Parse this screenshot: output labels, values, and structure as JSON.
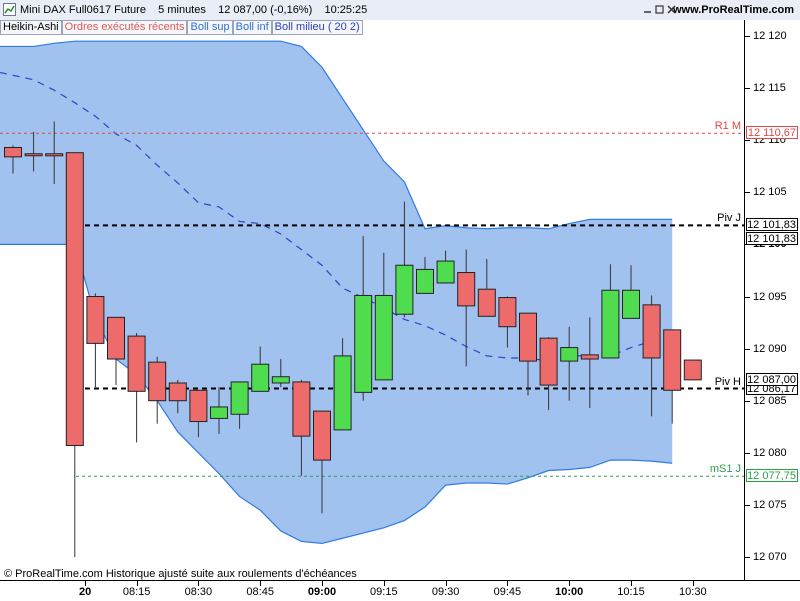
{
  "titlebar": {
    "title": "Mini DAX Full0617 Future    5 minutes    12 087,00 (-0,16%)    10:25:25",
    "brand": "www.ProRealTime.com"
  },
  "legend": [
    {
      "label": "Heikin-Ashi",
      "color": "#000000"
    },
    {
      "label": "Ordres exécutés récents",
      "color": "#e05a5a"
    },
    {
      "label": "Boll sup",
      "color": "#2f6fd6"
    },
    {
      "label": "Boll inf",
      "color": "#2f6fd6"
    },
    {
      "label": "Boll milieu ( 20 2)",
      "color": "#2f3fbf"
    }
  ],
  "footer": "© ProRealTime.com  Historique ajusté suite aux roulements d'échéances",
  "colors": {
    "up": "#4fdc4f",
    "down": "#ee6b6b",
    "band_fill": "#8cb4ec",
    "band_line": "#2f7be0",
    "mid_line": "#2a45c8",
    "red_level": "#e04848",
    "green_level": "#2aa048"
  },
  "levels": [
    {
      "name": "R1 M",
      "value": 12110.67,
      "label": "12 110,67",
      "style": "red"
    },
    {
      "name": "Piv J",
      "value": 12101.83,
      "label": "12 101,83",
      "style": "black"
    },
    {
      "name": "Piv H",
      "value": 12086.17,
      "label": "12 086,17",
      "style": "black"
    },
    {
      "name": "mS1 J",
      "value": 12077.75,
      "label": "12 077,75",
      "style": "green"
    }
  ],
  "extra_price_box": {
    "value": 12101.83,
    "label": "12 101,83"
  },
  "last_price": {
    "value": 12087.0,
    "label": "12 087,00"
  },
  "chart_data": {
    "type": "candlestick",
    "yaxis": {
      "min": 12069,
      "max": 12121,
      "ticks": [
        {
          "value": 12120,
          "label": "12 120",
          "bold": false
        },
        {
          "value": 12115,
          "label": "12 115",
          "bold": false
        },
        {
          "value": 12110,
          "label": "12 110",
          "bold": false
        },
        {
          "value": 12105,
          "label": "12 105",
          "bold": false
        },
        {
          "value": 12100,
          "label": "12 100",
          "bold": true
        },
        {
          "value": 12095,
          "label": "12 095",
          "bold": false
        },
        {
          "value": 12090,
          "label": "12 090",
          "bold": false
        },
        {
          "value": 12085,
          "label": "12 085",
          "bold": false
        },
        {
          "value": 12080,
          "label": "12 080",
          "bold": false
        },
        {
          "value": 12075,
          "label": "12 075",
          "bold": false
        },
        {
          "value": 12070,
          "label": "12 070",
          "bold": false
        }
      ]
    },
    "xaxis": {
      "ticks": [
        {
          "index": 3.5,
          "label": "20",
          "bold": true
        },
        {
          "index": 6,
          "label": "08:15",
          "bold": false
        },
        {
          "index": 9,
          "label": "08:30",
          "bold": false
        },
        {
          "index": 12,
          "label": "08:45",
          "bold": false
        },
        {
          "index": 15,
          "label": "09:00",
          "bold": true
        },
        {
          "index": 18,
          "label": "09:15",
          "bold": false
        },
        {
          "index": 21,
          "label": "09:30",
          "bold": false
        },
        {
          "index": 24,
          "label": "09:45",
          "bold": false
        },
        {
          "index": 27,
          "label": "10:00",
          "bold": true
        },
        {
          "index": 30,
          "label": "10:15",
          "bold": false
        },
        {
          "index": 33,
          "label": "10:30",
          "bold": false
        }
      ]
    },
    "candles": [
      {
        "o": 12109.3,
        "c": 12108.4,
        "h": 12109.5,
        "l": 12106.8
      },
      {
        "o": 12108.7,
        "c": 12108.6,
        "h": 12110.8,
        "l": 12107.0
      },
      {
        "o": 12108.7,
        "c": 12108.5,
        "h": 12111.8,
        "l": 12105.8
      },
      {
        "o": 12108.8,
        "c": 12080.7,
        "h": 12108.8,
        "l": 12070.0
      },
      {
        "o": 12095.0,
        "c": 12090.5,
        "h": 12095.3,
        "l": 12086.3
      },
      {
        "o": 12093.0,
        "c": 12089.0,
        "h": 12093.0,
        "l": 12086.5
      },
      {
        "o": 12091.2,
        "c": 12085.9,
        "h": 12091.5,
        "l": 12081.0
      },
      {
        "o": 12088.7,
        "c": 12085.0,
        "h": 12089.2,
        "l": 12082.8
      },
      {
        "o": 12086.7,
        "c": 12085.0,
        "h": 12087.0,
        "l": 12083.8
      },
      {
        "o": 12086.0,
        "c": 12083.0,
        "h": 12086.0,
        "l": 12081.5
      },
      {
        "o": 12083.3,
        "c": 12084.4,
        "h": 12086.3,
        "l": 12081.8
      },
      {
        "o": 12083.7,
        "c": 12086.8,
        "h": 12086.8,
        "l": 12082.3
      },
      {
        "o": 12085.9,
        "c": 12088.5,
        "h": 12090.2,
        "l": 12085.9
      },
      {
        "o": 12086.7,
        "c": 12087.3,
        "h": 12089.0,
        "l": 12086.3
      },
      {
        "o": 12086.8,
        "c": 12081.6,
        "h": 12087.0,
        "l": 12077.8
      },
      {
        "o": 12084.0,
        "c": 12079.3,
        "h": 12084.0,
        "l": 12074.2
      },
      {
        "o": 12082.2,
        "c": 12089.3,
        "h": 12091.0,
        "l": 12082.2
      },
      {
        "o": 12085.8,
        "c": 12095.1,
        "h": 12100.8,
        "l": 12085.0
      },
      {
        "o": 12087.0,
        "c": 12095.1,
        "h": 12099.2,
        "l": 12087.0
      },
      {
        "o": 12093.3,
        "c": 12098.0,
        "h": 12104.1,
        "l": 12093.0
      },
      {
        "o": 12095.3,
        "c": 12097.6,
        "h": 12098.8,
        "l": 12095.3
      },
      {
        "o": 12096.3,
        "c": 12098.4,
        "h": 12099.4,
        "l": 12096.3
      },
      {
        "o": 12097.3,
        "c": 12094.1,
        "h": 12099.5,
        "l": 12088.3
      },
      {
        "o": 12095.7,
        "c": 12093.1,
        "h": 12098.6,
        "l": 12093.1
      },
      {
        "o": 12094.9,
        "c": 12092.1,
        "h": 12095.0,
        "l": 12090.1
      },
      {
        "o": 12093.4,
        "c": 12088.8,
        "h": 12093.4,
        "l": 12085.5
      },
      {
        "o": 12091.0,
        "c": 12086.5,
        "h": 12091.1,
        "l": 12084.1
      },
      {
        "o": 12088.8,
        "c": 12090.1,
        "h": 12092.1,
        "l": 12085.0
      },
      {
        "o": 12089.4,
        "c": 12089.0,
        "h": 12093.0,
        "l": 12084.3
      },
      {
        "o": 12089.1,
        "c": 12095.6,
        "h": 12098.1,
        "l": 12089.1
      },
      {
        "o": 12092.9,
        "c": 12095.6,
        "h": 12098.0,
        "l": 12092.9
      },
      {
        "o": 12094.2,
        "c": 12089.1,
        "h": 12095.1,
        "l": 12083.5
      },
      {
        "o": 12091.8,
        "c": 12086.0,
        "h": 12091.8,
        "l": 12082.8
      },
      {
        "o": 12088.9,
        "c": 12087.0,
        "h": 12088.9,
        "l": 12087.0
      }
    ],
    "bollinger": {
      "sup": [
        12119,
        12119,
        12119.3,
        12119.5,
        12119.5,
        12119.5,
        12119.5,
        12119.5,
        12119.5,
        12119.5,
        12119.5,
        12119.5,
        12119.5,
        12119.5,
        12119.0,
        12117.0,
        12114.0,
        12111.0,
        12108.0,
        12106.0,
        12101.5,
        12101.8,
        12101.6,
        12101.5,
        12101.6,
        12101.6,
        12101.5,
        12102.0,
        12102.4,
        12102.4,
        12102.4,
        12102.4,
        12102.4
      ],
      "inf": [
        12100.0,
        12100.0,
        12100.0,
        12100.0,
        12093.0,
        12089.0,
        12087.5,
        12085.0,
        12082.0,
        12080.0,
        12078.0,
        12075.8,
        12074.5,
        12072.5,
        12071.5,
        12071.3,
        12071.8,
        12072.3,
        12072.8,
        12073.5,
        12074.8,
        12076.9,
        12077.1,
        12077.1,
        12077.0,
        12077.6,
        12078.3,
        12078.4,
        12078.6,
        12079.3,
        12079.3,
        12079.2,
        12079.0
      ],
      "mid": [
        12116.5,
        12115.8,
        12114.8,
        12113.6,
        12112.3,
        12110.6,
        12109.5,
        12107.6,
        12105.9,
        12104.0,
        12103.6,
        12102.2,
        12102.0,
        12101.0,
        12099.5,
        12098.0,
        12095.8,
        12094.9,
        12093.9,
        12092.8,
        12092.2,
        12091.3,
        12090.2,
        12089.3,
        12089.1,
        12089.1,
        12088.8,
        12089.3,
        12089.3,
        12089.3,
        12090.1,
        12090.7,
        12090.4
      ],
      "start_index": 0
    }
  }
}
